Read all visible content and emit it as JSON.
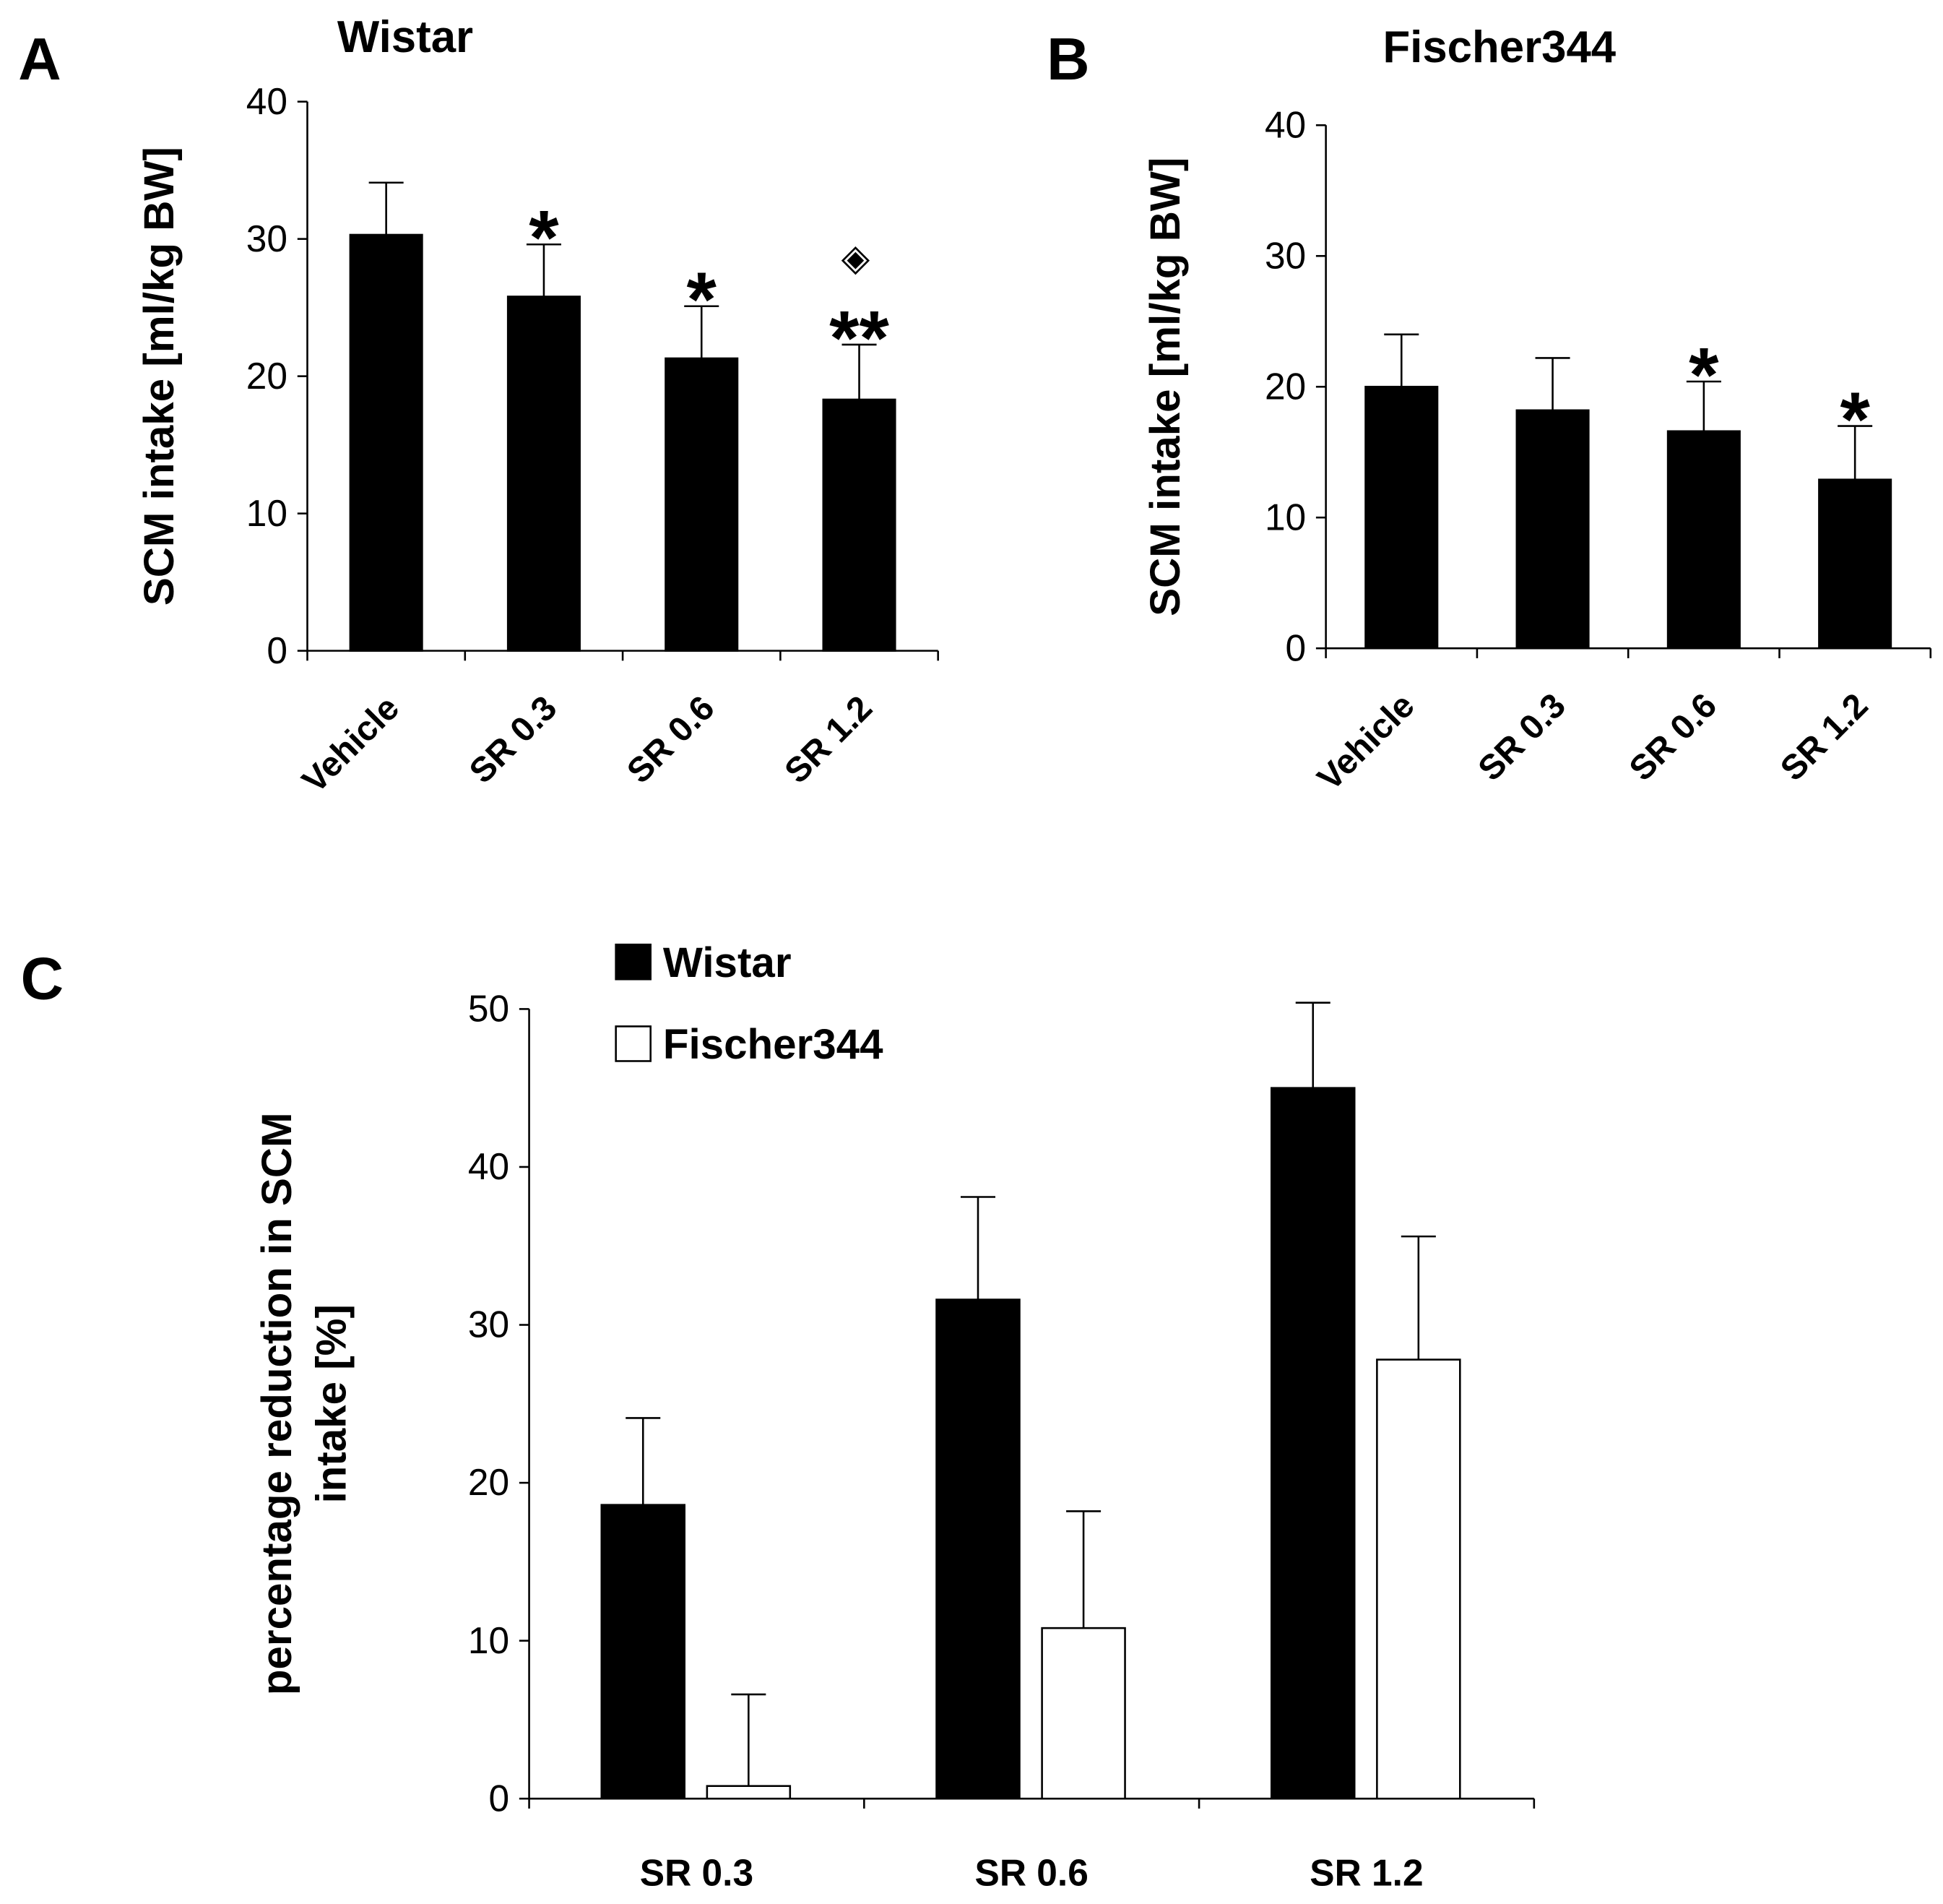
{
  "chart_data": [
    {
      "type": "bar",
      "panel_label": "A",
      "title": "Wistar",
      "ylabel": [
        "SCM intake [ml/kg BW]"
      ],
      "categories": [
        "Vehicle",
        "SR 0.3",
        "SR 0.6",
        "SR 1.2"
      ],
      "values": [
        30.3,
        25.8,
        21.3,
        18.3
      ],
      "errors": [
        3.8,
        3.8,
        3.8,
        4.0
      ],
      "color": "#000000",
      "annotations": [
        null,
        "*",
        "*",
        "**"
      ],
      "annotations_2": [
        null,
        null,
        null,
        "◈"
      ],
      "ylim": [
        0,
        40
      ],
      "yticks": [
        0,
        10,
        20,
        30,
        40
      ]
    },
    {
      "type": "bar",
      "panel_label": "B",
      "title": "Fischer344",
      "ylabel": [
        "SCM intake [ml/kg BW]"
      ],
      "categories": [
        "Vehicle",
        "SR 0.3",
        "SR 0.6",
        "SR 1.2"
      ],
      "values": [
        20.0,
        18.2,
        16.6,
        12.9
      ],
      "errors": [
        4.0,
        4.0,
        3.8,
        4.1
      ],
      "color": "#000000",
      "annotations": [
        null,
        null,
        "*",
        "*"
      ],
      "ylim": [
        0,
        40
      ],
      "yticks": [
        0,
        10,
        20,
        30,
        40
      ]
    },
    {
      "type": "grouped_bar",
      "panel_label": "C",
      "ylabel": [
        "percentage reduction in SCM",
        "intake [%]"
      ],
      "categories": [
        "SR 0.3",
        "SR 0.6",
        "SR 1.2"
      ],
      "series": [
        {
          "name": "Wistar",
          "color": "#000000",
          "values": [
            18.6,
            31.6,
            45.0
          ],
          "errors": [
            5.5,
            6.5,
            5.4
          ]
        },
        {
          "name": "Fischer344",
          "color": "#ffffff",
          "values": [
            0.8,
            10.8,
            27.8
          ],
          "errors": [
            5.8,
            7.4,
            7.8
          ]
        }
      ],
      "legend": "upper left",
      "ylim": [
        0,
        50
      ],
      "yticks": [
        0,
        10,
        20,
        30,
        40,
        50
      ]
    }
  ]
}
